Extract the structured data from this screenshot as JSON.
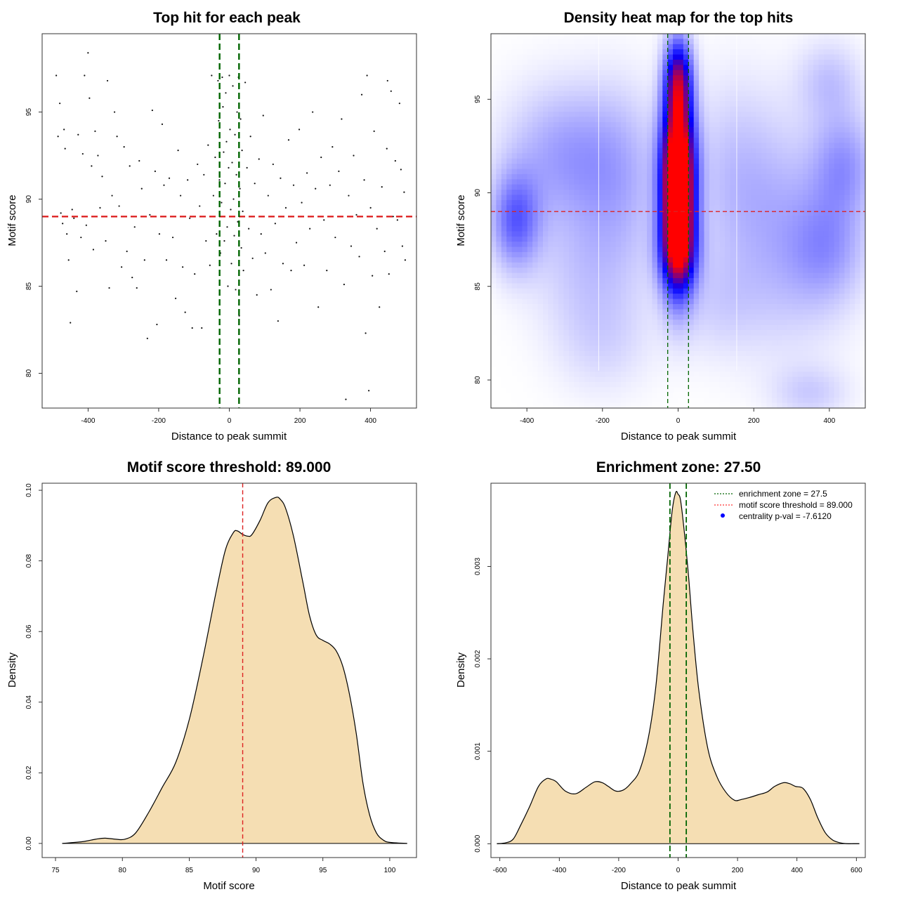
{
  "figure": {
    "panels": {
      "scatter": {
        "title": "Top hit for each peak",
        "xlabel": "Distance to peak summit",
        "ylabel": "Motif score"
      },
      "heatmap": {
        "title": "Density heat map for the top hits",
        "xlabel": "Distance to peak summit",
        "ylabel": "Motif score"
      },
      "score_density": {
        "title": "Motif score threshold: 89.000",
        "xlabel": "Motif score",
        "ylabel": "Density"
      },
      "dist_density": {
        "title": "Enrichment zone: 27.50",
        "xlabel": "Distance to peak summit",
        "ylabel": "Density"
      }
    },
    "legend": {
      "items": [
        {
          "label": "enrichment zone = 27.5",
          "color": "#006400",
          "style": "dotted-line"
        },
        {
          "label": "motif score threshold = 89.000",
          "color": "#ff3333",
          "style": "dotted-line"
        },
        {
          "label": "centrality p-val = -7.6120",
          "color": "#0000ff",
          "style": "point"
        }
      ],
      "placement": "top-right"
    }
  },
  "chart_data": [
    {
      "type": "scatter",
      "title": "Top hit for each peak",
      "xlabel": "Distance to peak summit",
      "ylabel": "Motif score",
      "xlim": [
        -530,
        530
      ],
      "ylim": [
        78,
        99.5
      ],
      "xticks": [
        -400,
        -200,
        0,
        200,
        400
      ],
      "yticks": [
        80,
        85,
        90,
        95
      ],
      "vlines": [
        -27.5,
        27.5
      ],
      "hline": 89,
      "vline_color": "#006400",
      "hline_color": "#dd2222",
      "points": [
        [
          -490,
          97.1
        ],
        [
          -485,
          93.6
        ],
        [
          -480,
          95.5
        ],
        [
          -477,
          89.2
        ],
        [
          -472,
          88.6
        ],
        [
          -468,
          94.0
        ],
        [
          -465,
          92.9
        ],
        [
          -460,
          88.0
        ],
        [
          -455,
          86.5
        ],
        [
          -450,
          82.9
        ],
        [
          -445,
          89.4
        ],
        [
          -440,
          88.9
        ],
        [
          -432,
          84.7
        ],
        [
          -428,
          93.7
        ],
        [
          -420,
          87.8
        ],
        [
          -415,
          92.6
        ],
        [
          -410,
          97.1
        ],
        [
          -405,
          88.5
        ],
        [
          -400,
          98.4
        ],
        [
          -396,
          95.8
        ],
        [
          -390,
          91.9
        ],
        [
          -385,
          87.1
        ],
        [
          -380,
          93.9
        ],
        [
          -372,
          92.5
        ],
        [
          -366,
          89.5
        ],
        [
          -360,
          91.3
        ],
        [
          -350,
          87.6
        ],
        [
          -345,
          96.8
        ],
        [
          -340,
          84.9
        ],
        [
          -332,
          90.2
        ],
        [
          -325,
          95.0
        ],
        [
          -318,
          93.6
        ],
        [
          -312,
          89.6
        ],
        [
          -305,
          86.1
        ],
        [
          -298,
          93.0
        ],
        [
          -290,
          87.0
        ],
        [
          -282,
          91.9
        ],
        [
          -275,
          85.5
        ],
        [
          -268,
          88.4
        ],
        [
          -262,
          84.9
        ],
        [
          -255,
          92.2
        ],
        [
          -248,
          90.6
        ],
        [
          -240,
          86.5
        ],
        [
          -232,
          82.0
        ],
        [
          -225,
          89.1
        ],
        [
          -218,
          95.1
        ],
        [
          -210,
          91.6
        ],
        [
          -205,
          82.8
        ],
        [
          -198,
          88.0
        ],
        [
          -190,
          94.3
        ],
        [
          -185,
          90.8
        ],
        [
          -178,
          86.5
        ],
        [
          -170,
          91.2
        ],
        [
          -160,
          87.8
        ],
        [
          -152,
          84.3
        ],
        [
          -145,
          92.8
        ],
        [
          -138,
          90.2
        ],
        [
          -132,
          86.1
        ],
        [
          -125,
          83.5
        ],
        [
          -118,
          91.1
        ],
        [
          -112,
          88.9
        ],
        [
          -105,
          82.6
        ],
        [
          -98,
          85.7
        ],
        [
          -90,
          92.0
        ],
        [
          -84,
          89.6
        ],
        [
          -78,
          82.6
        ],
        [
          -72,
          91.4
        ],
        [
          -66,
          87.6
        ],
        [
          -60,
          93.1
        ],
        [
          -55,
          86.2
        ],
        [
          -50,
          97.1
        ],
        [
          -45,
          90.2
        ],
        [
          -40,
          92.4
        ],
        [
          -36,
          88.0
        ],
        [
          -32,
          96.8
        ],
        [
          -30,
          94.5
        ],
        [
          -28,
          91.1
        ],
        [
          -25,
          86.9
        ],
        [
          -22,
          89.8
        ],
        [
          -20,
          97.0
        ],
        [
          -18,
          95.3
        ],
        [
          -16,
          92.7
        ],
        [
          -14,
          87.6
        ],
        [
          -12,
          90.9
        ],
        [
          -10,
          96.1
        ],
        [
          -8,
          93.3
        ],
        [
          -6,
          88.4
        ],
        [
          -4,
          85.0
        ],
        [
          -2,
          91.8
        ],
        [
          0,
          97.1
        ],
        [
          2,
          94.0
        ],
        [
          4,
          89.4
        ],
        [
          6,
          86.3
        ],
        [
          8,
          92.1
        ],
        [
          10,
          96.5
        ],
        [
          12,
          90.0
        ],
        [
          14,
          87.9
        ],
        [
          16,
          93.7
        ],
        [
          18,
          84.8
        ],
        [
          20,
          91.4
        ],
        [
          22,
          95.0
        ],
        [
          24,
          88.7
        ],
        [
          26,
          97.0
        ],
        [
          28,
          83.3
        ],
        [
          30,
          90.6
        ],
        [
          32,
          94.6
        ],
        [
          34,
          87.2
        ],
        [
          36,
          92.8
        ],
        [
          38,
          89.3
        ],
        [
          40,
          85.9
        ],
        [
          45,
          96.7
        ],
        [
          50,
          91.8
        ],
        [
          55,
          88.3
        ],
        [
          60,
          93.6
        ],
        [
          66,
          86.6
        ],
        [
          72,
          90.9
        ],
        [
          78,
          84.5
        ],
        [
          84,
          92.3
        ],
        [
          90,
          88.0
        ],
        [
          96,
          94.8
        ],
        [
          102,
          86.9
        ],
        [
          110,
          90.2
        ],
        [
          118,
          84.8
        ],
        [
          124,
          92.0
        ],
        [
          130,
          88.6
        ],
        [
          138,
          83.0
        ],
        [
          145,
          91.2
        ],
        [
          152,
          86.3
        ],
        [
          160,
          89.5
        ],
        [
          168,
          93.4
        ],
        [
          175,
          85.9
        ],
        [
          182,
          90.8
        ],
        [
          190,
          87.5
        ],
        [
          198,
          94.0
        ],
        [
          205,
          89.8
        ],
        [
          212,
          86.2
        ],
        [
          220,
          91.5
        ],
        [
          228,
          88.3
        ],
        [
          236,
          95.0
        ],
        [
          244,
          90.6
        ],
        [
          252,
          83.8
        ],
        [
          260,
          92.4
        ],
        [
          268,
          88.8
        ],
        [
          276,
          85.9
        ],
        [
          285,
          90.8
        ],
        [
          292,
          93.0
        ],
        [
          300,
          87.8
        ],
        [
          310,
          91.6
        ],
        [
          318,
          94.6
        ],
        [
          325,
          85.1
        ],
        [
          330,
          78.5
        ],
        [
          338,
          90.2
        ],
        [
          345,
          87.3
        ],
        [
          352,
          92.5
        ],
        [
          360,
          89.1
        ],
        [
          368,
          86.7
        ],
        [
          375,
          96.0
        ],
        [
          382,
          91.1
        ],
        [
          386,
          82.3
        ],
        [
          390,
          97.1
        ],
        [
          395,
          79.0
        ],
        [
          400,
          89.5
        ],
        [
          405,
          85.6
        ],
        [
          410,
          93.9
        ],
        [
          418,
          88.3
        ],
        [
          425,
          83.8
        ],
        [
          432,
          90.7
        ],
        [
          440,
          87.0
        ],
        [
          446,
          92.9
        ],
        [
          452,
          85.7
        ],
        [
          458,
          96.2
        ],
        [
          464,
          89.0
        ],
        [
          470,
          92.2
        ],
        [
          476,
          88.8
        ],
        [
          482,
          95.5
        ],
        [
          486,
          91.7
        ],
        [
          490,
          87.3
        ],
        [
          495,
          90.4
        ],
        [
          498,
          86.5
        ],
        [
          448,
          96.8
        ]
      ]
    },
    {
      "type": "heatmap",
      "title": "Density heat map for the top hits",
      "xlabel": "Distance to peak summit",
      "ylabel": "Motif score",
      "xlim": [
        -495,
        495
      ],
      "ylim": [
        78.5,
        98.5
      ],
      "xticks": [
        -400,
        -200,
        0,
        200,
        400
      ],
      "yticks": [
        80,
        85,
        90,
        95
      ],
      "vlines": [
        -27.5,
        27.5
      ],
      "hline": 89,
      "white_vlines": [
        -210,
        155
      ],
      "colormap": [
        "#ffffff",
        "#0000ff",
        "#ff0000"
      ],
      "blobs": [
        {
          "x": 0,
          "y": 88.6,
          "sx": 30,
          "sy": 2.6,
          "w": 1.0
        },
        {
          "x": 0,
          "y": 92.0,
          "sx": 30,
          "sy": 2.2,
          "w": 0.88
        },
        {
          "x": 0,
          "y": 96.0,
          "sx": 25,
          "sy": 1.6,
          "w": 0.72
        },
        {
          "x": 0,
          "y": 86.8,
          "sx": 36,
          "sy": 1.4,
          "w": 0.35
        },
        {
          "x": -430,
          "y": 88.5,
          "sx": 45,
          "sy": 1.8,
          "w": 0.32
        },
        {
          "x": -300,
          "y": 92.0,
          "sx": 110,
          "sy": 2.6,
          "w": 0.2
        },
        {
          "x": -150,
          "y": 90.5,
          "sx": 80,
          "sy": 3.5,
          "w": 0.13
        },
        {
          "x": 150,
          "y": 91.0,
          "sx": 90,
          "sy": 3.5,
          "w": 0.12
        },
        {
          "x": 300,
          "y": 87.5,
          "sx": 110,
          "sy": 4.0,
          "w": 0.15
        },
        {
          "x": 440,
          "y": 91.5,
          "sx": 60,
          "sy": 2.0,
          "w": 0.2
        },
        {
          "x": 400,
          "y": 87.0,
          "sx": 70,
          "sy": 2.0,
          "w": 0.15
        },
        {
          "x": 400,
          "y": 96.0,
          "sx": 60,
          "sy": 1.5,
          "w": 0.12
        },
        {
          "x": 350,
          "y": 79.3,
          "sx": 70,
          "sy": 1.0,
          "w": 0.1
        },
        {
          "x": -250,
          "y": 86.0,
          "sx": 100,
          "sy": 2.5,
          "w": 0.1
        },
        {
          "x": -200,
          "y": 82.0,
          "sx": 90,
          "sy": 2.0,
          "w": 0.08
        },
        {
          "x": 100,
          "y": 84.0,
          "sx": 90,
          "sy": 2.0,
          "w": 0.08
        }
      ]
    },
    {
      "type": "area",
      "title": "Motif score threshold: 89.000",
      "xlabel": "Motif score",
      "ylabel": "Density",
      "xlim": [
        74,
        102
      ],
      "ylim": [
        -0.004,
        0.102
      ],
      "xticks": [
        75,
        80,
        85,
        90,
        95,
        100
      ],
      "yticks": [
        0.0,
        0.02,
        0.04,
        0.06,
        0.08,
        0.1
      ],
      "ytick_labels": [
        "0.00",
        "0.02",
        "0.04",
        "0.06",
        "0.08",
        "0.10"
      ],
      "vline": 89,
      "vline_color": "#dd2222",
      "fill": "#f5deb3",
      "x": [
        75.5,
        77,
        78,
        78.7,
        79.5,
        80.2,
        81,
        82,
        83,
        84,
        85,
        86,
        87,
        87.7,
        88.3,
        88.6,
        89,
        89.4,
        89.7,
        90.3,
        90.9,
        91.5,
        91.8,
        92.2,
        92.8,
        93.5,
        94,
        94.5,
        95,
        95.5,
        96,
        96.5,
        97,
        97.5,
        98,
        98.5,
        99,
        99.5,
        100,
        101.3
      ],
      "y": [
        0.0,
        0.0005,
        0.0012,
        0.0015,
        0.0012,
        0.0012,
        0.003,
        0.009,
        0.016,
        0.023,
        0.035,
        0.052,
        0.071,
        0.083,
        0.088,
        0.0885,
        0.0875,
        0.087,
        0.0875,
        0.0915,
        0.0965,
        0.098,
        0.0975,
        0.095,
        0.087,
        0.074,
        0.0645,
        0.059,
        0.0575,
        0.0565,
        0.0545,
        0.05,
        0.042,
        0.031,
        0.017,
        0.008,
        0.003,
        0.001,
        0.0003,
        0.0
      ]
    },
    {
      "type": "area",
      "title": "Enrichment zone: 27.50",
      "xlabel": "Distance to peak summit",
      "ylabel": "Density",
      "xlim": [
        -630,
        630
      ],
      "ylim": [
        -0.00015,
        0.0039
      ],
      "xticks": [
        -600,
        -400,
        -200,
        0,
        200,
        400,
        600
      ],
      "yticks": [
        0.0,
        0.001,
        0.002,
        0.003
      ],
      "ytick_labels": [
        "0.000",
        "0.001",
        "0.002",
        "0.003"
      ],
      "vlines": [
        -27.5,
        27.5
      ],
      "vline_color": "#006400",
      "fill": "#f5deb3",
      "x": [
        -610,
        -580,
        -555,
        -530,
        -500,
        -470,
        -445,
        -430,
        -410,
        -380,
        -345,
        -310,
        -280,
        -255,
        -235,
        -210,
        -185,
        -160,
        -130,
        -100,
        -75,
        -50,
        -35,
        -20,
        -8,
        0,
        8,
        20,
        35,
        50,
        70,
        100,
        130,
        160,
        190,
        215,
        240,
        270,
        300,
        325,
        355,
        375,
        395,
        420,
        445,
        470,
        495,
        520,
        545,
        570,
        590,
        610
      ],
      "y": [
        0.0,
        1e-05,
        5e-05,
        0.0002,
        0.0004,
        0.00062,
        0.0007,
        0.0007,
        0.00067,
        0.00057,
        0.00054,
        0.00061,
        0.00067,
        0.00066,
        0.00062,
        0.00057,
        0.00058,
        0.00065,
        0.00079,
        0.00115,
        0.0017,
        0.0026,
        0.0031,
        0.0036,
        0.0038,
        0.00378,
        0.00372,
        0.0034,
        0.0029,
        0.0023,
        0.00165,
        0.00103,
        0.00073,
        0.00056,
        0.00047,
        0.00048,
        0.0005,
        0.00053,
        0.00056,
        0.00062,
        0.00066,
        0.00065,
        0.00062,
        0.0006,
        0.00048,
        0.00028,
        0.00012,
        4e-05,
        1e-05,
        0.0,
        0.0,
        0.0
      ]
    }
  ]
}
